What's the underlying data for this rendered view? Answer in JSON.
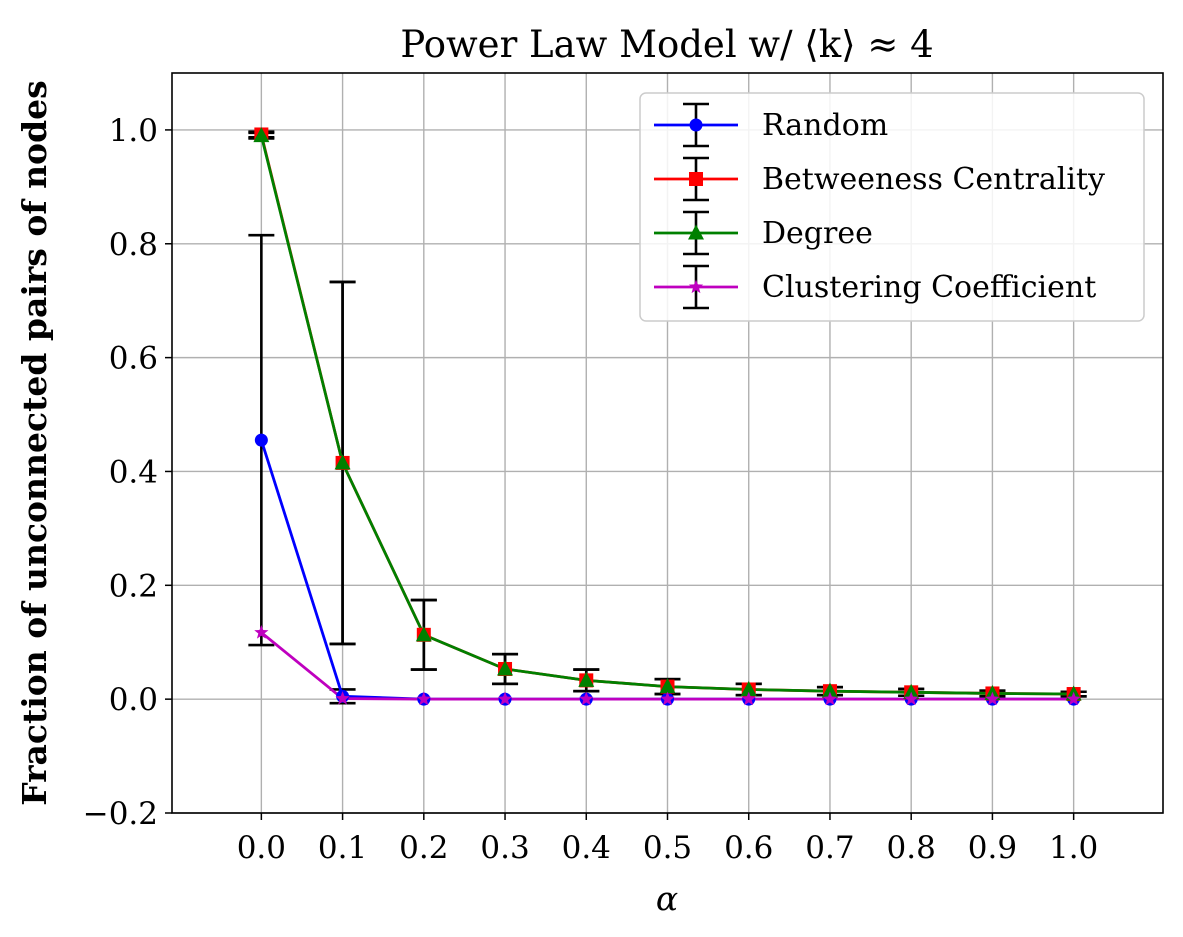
{
  "chart_data": {
    "type": "line",
    "title": "Power Law Model w/ ⟨k⟩ ≈ 4",
    "xlabel": "α",
    "ylabel": "Fraction of unconnected pairs of nodes",
    "x": [
      0.0,
      0.1,
      0.2,
      0.3,
      0.4,
      0.5,
      0.6,
      0.7,
      0.8,
      0.9,
      1.0
    ],
    "x_tick_labels": [
      "0.0",
      "0.1",
      "0.2",
      "0.3",
      "0.4",
      "0.5",
      "0.6",
      "0.7",
      "0.8",
      "0.9",
      "1.0"
    ],
    "y_ticks": [
      -0.2,
      0.0,
      0.2,
      0.4,
      0.6,
      0.8,
      1.0
    ],
    "y_tick_labels": [
      "−0.2",
      "0.0",
      "0.2",
      "0.4",
      "0.6",
      "0.8",
      "1.0"
    ],
    "xlim": [
      -0.11,
      1.11
    ],
    "ylim": [
      -0.2,
      1.1
    ],
    "grid": true,
    "legend_position": "top-right",
    "series": [
      {
        "name": "Random",
        "color": "#0000ff",
        "marker": "circle",
        "values": [
          0.455,
          0.005,
          0.0,
          0.0,
          0.0,
          0.0,
          0.0,
          0.0,
          0.0,
          0.0,
          0.0
        ],
        "errors": [
          0.36,
          0.012,
          0.0,
          0.0,
          0.0,
          0.0,
          0.0,
          0.0,
          0.0,
          0.0,
          0.0
        ]
      },
      {
        "name": "Betweeness Centrality",
        "color": "#ff0000",
        "marker": "square",
        "values": [
          0.992,
          0.415,
          0.113,
          0.053,
          0.033,
          0.022,
          0.017,
          0.014,
          0.012,
          0.01,
          0.009
        ],
        "errors": [
          0.005,
          0.318,
          0.061,
          0.026,
          0.019,
          0.013,
          0.01,
          0.007,
          0.006,
          0.005,
          0.004
        ]
      },
      {
        "name": "Degree",
        "color": "#008000",
        "marker": "triangle",
        "values": [
          0.99,
          0.415,
          0.113,
          0.053,
          0.033,
          0.022,
          0.017,
          0.014,
          0.012,
          0.01,
          0.009
        ],
        "errors": [
          0.005,
          0.318,
          0.061,
          0.026,
          0.019,
          0.013,
          0.01,
          0.007,
          0.006,
          0.005,
          0.004
        ]
      },
      {
        "name": "Clustering Coefficient",
        "color": "#bf00bf",
        "marker": "star",
        "values": [
          0.117,
          0.001,
          0.0,
          0.0,
          0.0,
          0.0,
          0.0,
          0.0,
          0.0,
          0.0,
          0.0
        ],
        "errors": [
          0.0,
          0.0,
          0.0,
          0.0,
          0.0,
          0.0,
          0.0,
          0.0,
          0.0,
          0.0,
          0.0
        ]
      }
    ]
  }
}
